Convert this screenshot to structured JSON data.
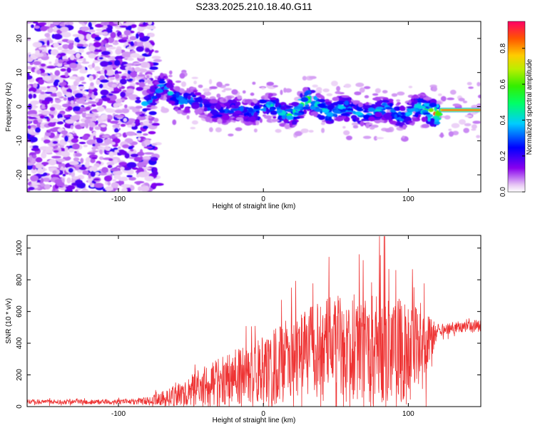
{
  "title": "S233.2025.210.18.40.G11",
  "chart_data": [
    {
      "type": "heatmap",
      "xlabel": "Height of straight line (km)",
      "ylabel": "Frequency (Hz)",
      "xlim": [
        -163,
        150
      ],
      "ylim": [
        -25,
        25
      ],
      "x_ticks": [
        "-100",
        "0",
        "100"
      ],
      "x_tick_values": [
        -100,
        0,
        100
      ],
      "y_ticks": [
        "-20",
        "-10",
        "0",
        "10",
        "20"
      ],
      "y_tick_values": [
        -20,
        -10,
        0,
        10,
        20
      ],
      "colorbar": {
        "label": "Normalized spectral amplitude",
        "ticks": [
          "0.0",
          "0.2",
          "0.4",
          "0.6",
          "0.8"
        ],
        "tick_values": [
          0,
          0.2,
          0.4,
          0.6,
          0.8
        ],
        "range": [
          0,
          0.95
        ],
        "colormap": "rainbow (violet-blue-cyan-green-yellow-red)"
      },
      "ridge": {
        "x": [
          -80,
          -70,
          -60,
          -50,
          -40,
          -30,
          -20,
          -10,
          0,
          10,
          20,
          30,
          40,
          50,
          60,
          70,
          80,
          90,
          100,
          110,
          120,
          130,
          140,
          150
        ],
        "frequency": [
          2,
          5,
          3,
          2,
          -1,
          0,
          -2,
          -1,
          0,
          -2,
          -1,
          1,
          0,
          -1,
          -2,
          -1,
          -2,
          -1,
          -2,
          -1,
          -1,
          -1,
          -1,
          -1
        ],
        "amplitude": [
          0.35,
          0.4,
          0.4,
          0.35,
          0.3,
          0.35,
          0.35,
          0.35,
          0.4,
          0.5,
          0.5,
          0.6,
          0.5,
          0.45,
          0.45,
          0.4,
          0.4,
          0.4,
          0.45,
          0.5,
          0.9,
          0.95,
          0.95,
          0.85
        ]
      }
    },
    {
      "type": "line",
      "xlabel": "Height of straight line (km)",
      "ylabel": "SNR (10 * v/v)",
      "xlim": [
        -163,
        150
      ],
      "ylim": [
        0,
        1080
      ],
      "x_ticks": [
        "-100",
        "0",
        "100"
      ],
      "x_tick_values": [
        -100,
        0,
        100
      ],
      "y_ticks": [
        "0",
        "200",
        "400",
        "600",
        "800",
        "1000"
      ],
      "y_tick_values": [
        0,
        200,
        400,
        600,
        800,
        1000
      ],
      "line_color": "#ee3333",
      "envelope": {
        "x": [
          -163,
          -140,
          -120,
          -100,
          -80,
          -70,
          -60,
          -50,
          -40,
          -30,
          -20,
          -10,
          0,
          10,
          20,
          30,
          40,
          50,
          60,
          70,
          80,
          90,
          100,
          110,
          120,
          130,
          140,
          150
        ],
        "base": [
          30,
          30,
          30,
          30,
          35,
          50,
          70,
          100,
          130,
          150,
          180,
          200,
          220,
          260,
          300,
          330,
          360,
          380,
          380,
          370,
          360,
          350,
          340,
          330,
          480,
          500,
          510,
          510
        ],
        "spread": [
          15,
          15,
          15,
          15,
          25,
          45,
          70,
          100,
          130,
          160,
          180,
          200,
          220,
          250,
          270,
          290,
          310,
          330,
          340,
          350,
          360,
          330,
          310,
          280,
          40,
          40,
          40,
          40
        ]
      }
    }
  ]
}
